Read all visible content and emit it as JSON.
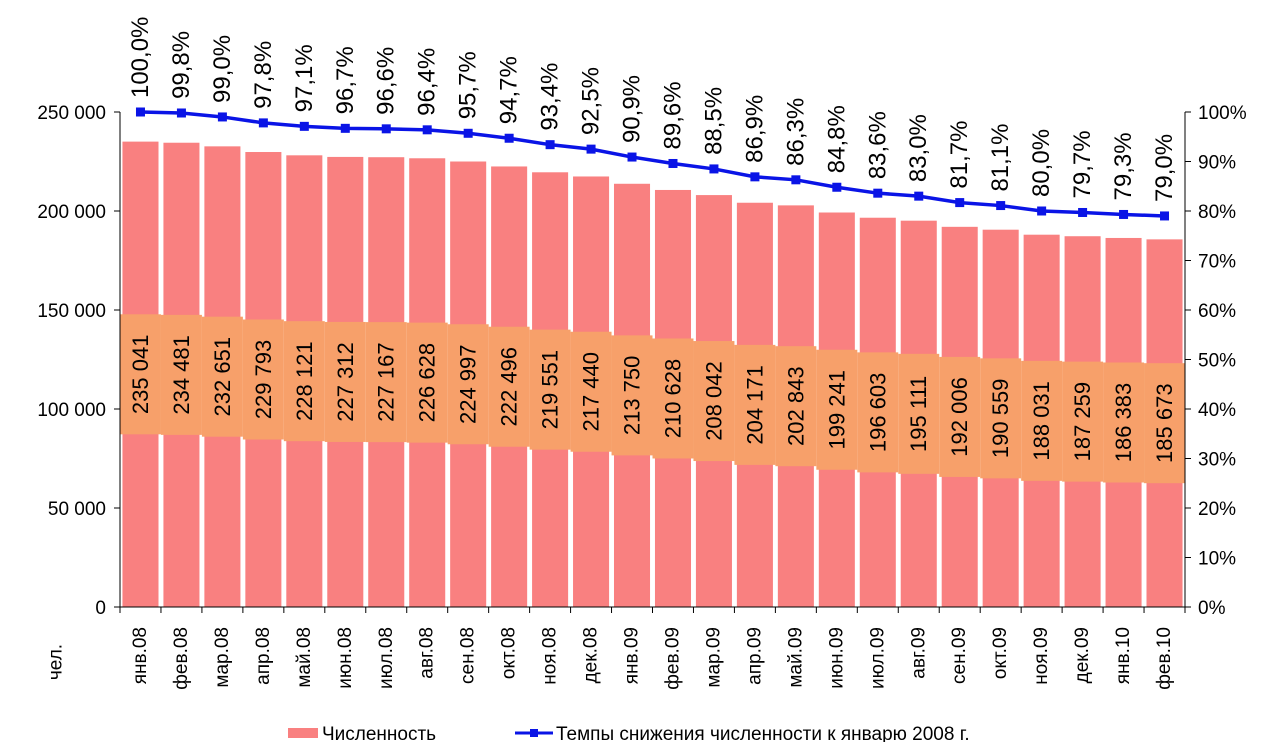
{
  "chart_data": {
    "type": "bar",
    "categories": [
      "янв.08",
      "фев.08",
      "мар.08",
      "апр.08",
      "май.08",
      "июн.08",
      "июл.08",
      "авг.08",
      "сен.08",
      "окт.08",
      "ноя.08",
      "дек.08",
      "янв.09",
      "фев.09",
      "мар.09",
      "апр.09",
      "май.09",
      "июн.09",
      "июл.09",
      "авг.09",
      "сен.09",
      "окт.09",
      "ноя.09",
      "дек.09",
      "янв.10",
      "фев.10"
    ],
    "series": [
      {
        "name": "Численность",
        "type": "bar",
        "axis": "left",
        "color": "#f98080",
        "values": [
          235041,
          234481,
          232651,
          229793,
          228121,
          227312,
          227167,
          226628,
          224997,
          222496,
          219551,
          217440,
          213750,
          210628,
          208042,
          204171,
          202843,
          199241,
          196603,
          195111,
          192006,
          190559,
          188031,
          187259,
          186383,
          185673
        ],
        "labels": [
          "235 041",
          "234 481",
          "232 651",
          "229 793",
          "228 121",
          "227 312",
          "227 167",
          "226 628",
          "224 997",
          "222 496",
          "219 551",
          "217 440",
          "213 750",
          "210 628",
          "208 042",
          "204 171",
          "202 843",
          "199 241",
          "196 603",
          "195 111",
          "192 006",
          "190 559",
          "188 031",
          "187 259",
          "186 383",
          "185 673"
        ]
      },
      {
        "name": "Темпы снижения  численности к январю 2008 г.",
        "type": "line",
        "axis": "right",
        "color": "#0a14e6",
        "values": [
          100.0,
          99.8,
          99.0,
          97.8,
          97.1,
          96.7,
          96.6,
          96.4,
          95.7,
          94.7,
          93.4,
          92.5,
          90.9,
          89.6,
          88.5,
          86.9,
          86.3,
          84.8,
          83.6,
          83.0,
          81.7,
          81.1,
          80.0,
          79.7,
          79.3,
          79.0
        ],
        "labels": [
          "100,0%",
          "99,8%",
          "99,0%",
          "97,8%",
          "97,1%",
          "96,7%",
          "96,6%",
          "96,4%",
          "95,7%",
          "94,7%",
          "93,4%",
          "92,5%",
          "90,9%",
          "89,6%",
          "88,5%",
          "86,9%",
          "86,3%",
          "84,8%",
          "83,6%",
          "83,0%",
          "81,7%",
          "81,1%",
          "80,0%",
          "79,7%",
          "79,3%",
          "79,0%"
        ]
      }
    ],
    "ylabel": "чел.",
    "ylim": [
      0,
      250000
    ],
    "y_ticks": [
      0,
      50000,
      100000,
      150000,
      200000,
      250000
    ],
    "y_tick_labels": [
      "0",
      "50 000",
      "100 000",
      "150 000",
      "200 000",
      "250 000"
    ],
    "y2lim": [
      0,
      100
    ],
    "y2_ticks": [
      0,
      10,
      20,
      30,
      40,
      50,
      60,
      70,
      80,
      90,
      100
    ],
    "y2_tick_labels": [
      "0%",
      "10%",
      "20%",
      "30%",
      "40%",
      "50%",
      "60%",
      "70%",
      "80%",
      "90%",
      "100%"
    ],
    "label_band_color": "#f7a06a",
    "legend_position": "bottom",
    "grid": false
  }
}
